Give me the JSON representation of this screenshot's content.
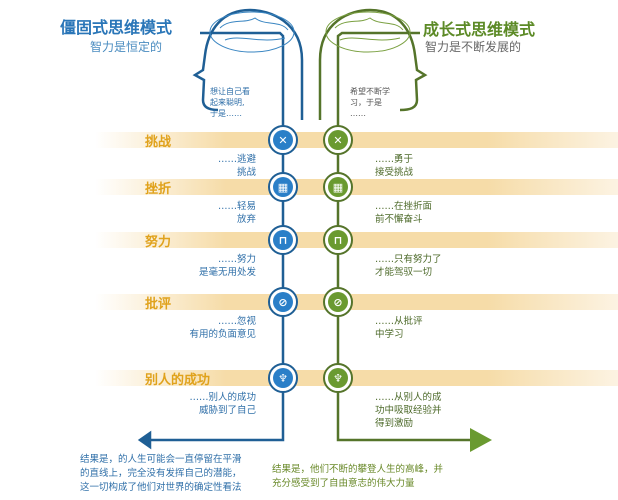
{
  "fixed": {
    "title": "僵固式思维模式",
    "subtitle": "智力是恒定的",
    "thought": [
      "想让自己看",
      "起来聪明,",
      "于是……"
    ],
    "color": "#2a76b8",
    "result": "结果是，的人生可能会一直停留在平滑的直线上，完全没有发挥自己的潜能，这一切构成了他们对世界的确定性看法"
  },
  "growth": {
    "title": "成长式思维模式",
    "subtitle": "智力是不断发展的",
    "thought": [
      "希望不断学",
      "习，于是",
      "……"
    ],
    "color": "#5c8a26",
    "result": "结果是，他们不断的攀登人生的高峰，并充分感受到了自由意志的伟大力量"
  },
  "rows": [
    {
      "label": "挑战",
      "icon": "arrows-cross-icon",
      "fixed": [
        "……逃避",
        "挑战"
      ],
      "growth": [
        "……勇于",
        "接受挑战"
      ]
    },
    {
      "label": "挫折",
      "icon": "brick-wall-icon",
      "fixed": [
        "……轻易",
        "放弃"
      ],
      "growth": [
        "……在挫折面",
        "前不懈奋斗"
      ]
    },
    {
      "label": "努力",
      "icon": "weightlift-icon",
      "fixed": [
        "……努力",
        "是毫无用处发"
      ],
      "growth": [
        "……只有努力了",
        "才能驾驭一切"
      ]
    },
    {
      "label": "批评",
      "icon": "prohibited-icon",
      "fixed": [
        "……忽视",
        "有用的负面意见"
      ],
      "growth": [
        "……从批评",
        "中学习"
      ]
    },
    {
      "label": "别人的成功",
      "icon": "lungs-icon",
      "fixed": [
        "……别人的成功",
        "威胁到了自己"
      ],
      "growth": [
        "……从别人的成",
        "功中吸取经验并",
        "得到激励"
      ]
    }
  ]
}
